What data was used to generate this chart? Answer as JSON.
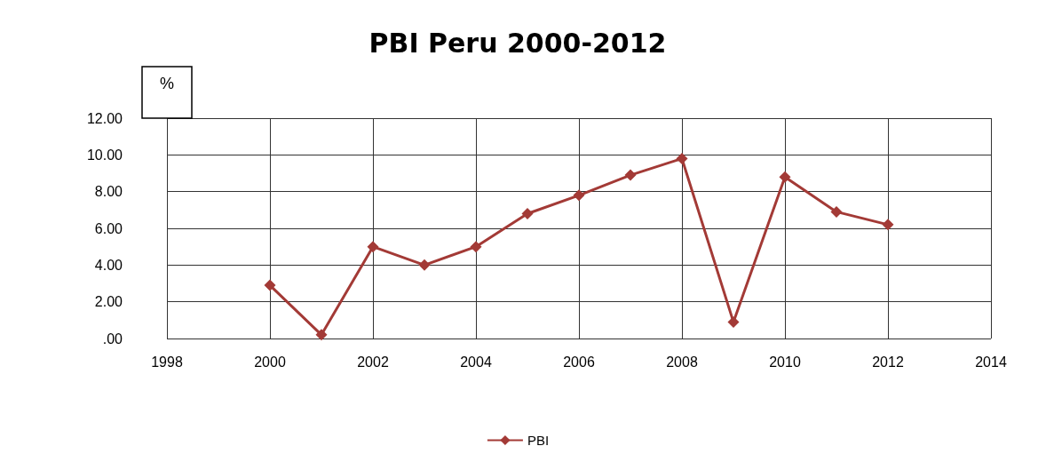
{
  "chart_data": {
    "type": "line",
    "title": "PBI Peru 2000-2012",
    "ylabel": "%",
    "x": [
      2000,
      2001,
      2002,
      2003,
      2004,
      2005,
      2006,
      2007,
      2008,
      2009,
      2010,
      2011,
      2012
    ],
    "series": [
      {
        "name": "PBI",
        "color": "#a33a36",
        "values": [
          2.9,
          0.2,
          5.0,
          4.0,
          5.0,
          6.8,
          7.8,
          8.9,
          9.8,
          0.9,
          8.8,
          6.9,
          6.2
        ]
      }
    ],
    "xlim": [
      1998,
      2014
    ],
    "xticks": [
      1998,
      2000,
      2002,
      2004,
      2006,
      2008,
      2010,
      2012,
      2014
    ],
    "ylim": [
      0,
      12
    ],
    "yticks": [
      {
        "value": 0,
        "label": ".00"
      },
      {
        "value": 2,
        "label": "2.00"
      },
      {
        "value": 4,
        "label": "4.00"
      },
      {
        "value": 6,
        "label": "6.00"
      },
      {
        "value": 8,
        "label": "8.00"
      },
      {
        "value": 10,
        "label": "10.00"
      },
      {
        "value": 12,
        "label": "12.00"
      }
    ],
    "grid": true,
    "legend": "bottom",
    "marker": "diamond",
    "line_style": "solid"
  }
}
